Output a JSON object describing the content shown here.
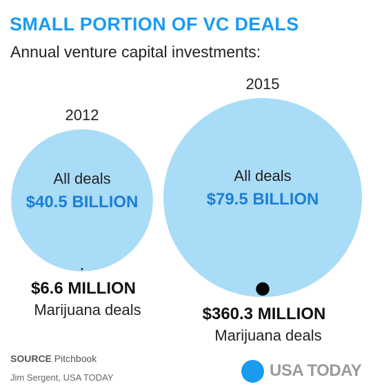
{
  "title": "SMALL PORTION OF VC DEALS",
  "subtitle": "Annual venture capital investments:",
  "colors": {
    "title": "#1a9bf0",
    "bubble": "#a9dcf7",
    "marijuana_dot": "#000000",
    "value": "#1a7fd6",
    "text": "#222222",
    "logo_dot": "#1a9bf0",
    "logo_text": "#9a9a9a"
  },
  "chart_data": {
    "type": "bubble",
    "title": "SMALL PORTION OF VC DEALS",
    "subtitle": "Annual venture capital investments:",
    "groups": [
      {
        "year": "2012",
        "all_deals_label": "All deals",
        "all_deals_value_text": "$40.5 BILLION",
        "all_deals_value": 40.5,
        "all_deals_unit": "billion USD",
        "marijuana_value_text": "$6.6 MILLION",
        "marijuana_label": "Marijuana deals",
        "marijuana_value": 6.6,
        "marijuana_unit": "million USD"
      },
      {
        "year": "2015",
        "all_deals_label": "All deals",
        "all_deals_value_text": "$79.5 BILLION",
        "all_deals_value": 79.5,
        "all_deals_unit": "billion USD",
        "marijuana_value_text": "$360.3 MILLION",
        "marijuana_label": "Marijuana deals",
        "marijuana_value": 360.3,
        "marijuana_unit": "million USD"
      }
    ]
  },
  "footer": {
    "source_label": "SOURCE",
    "source_name": "Pitchbook",
    "credit": "Jim Sergent, USA TODAY"
  },
  "logo": {
    "text": "USA TODAY",
    "icon": "usa-today-dot-icon"
  }
}
